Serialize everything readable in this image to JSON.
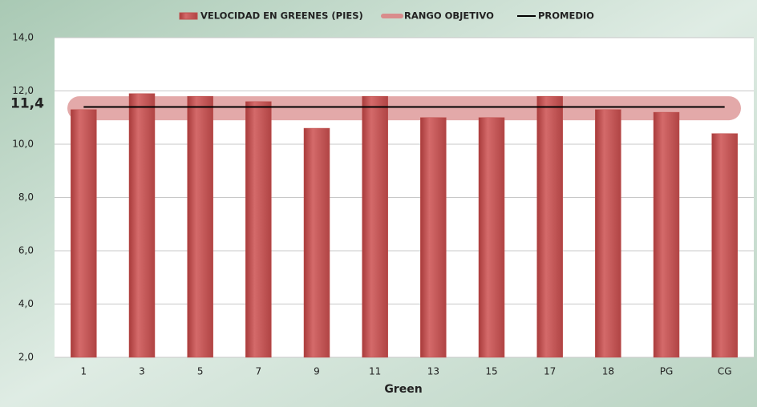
{
  "chart_data": {
    "type": "bar",
    "categories": [
      "1",
      "3",
      "5",
      "7",
      "9",
      "11",
      "13",
      "15",
      "17",
      "18",
      "PG",
      "CG"
    ],
    "series": [
      {
        "name": "VELOCIDAD EN GREENES (PIES)",
        "color": "#c0504d",
        "values": [
          11.3,
          11.9,
          11.8,
          11.6,
          10.6,
          11.8,
          11.0,
          11.0,
          11.8,
          11.3,
          11.2,
          10.4
        ]
      }
    ],
    "target_range": {
      "name": "RANGO OBJETIVO",
      "color": "#d98c8c",
      "values": [
        10.9,
        11.8
      ]
    },
    "average": {
      "name": "PROMEDIO",
      "color": "#000000",
      "value": 11.4,
      "label": "11,4"
    },
    "xlabel": "Green",
    "ylim": [
      2,
      14
    ],
    "yticks": [
      {
        "value": 2,
        "label": "2,0"
      },
      {
        "value": 4,
        "label": "4,0"
      },
      {
        "value": 6,
        "label": "6,0"
      },
      {
        "value": 8,
        "label": "8,0"
      },
      {
        "value": 10,
        "label": "10,0"
      },
      {
        "value": 12,
        "label": "12,0"
      },
      {
        "value": 14,
        "label": "14,0"
      }
    ],
    "grid": true
  }
}
